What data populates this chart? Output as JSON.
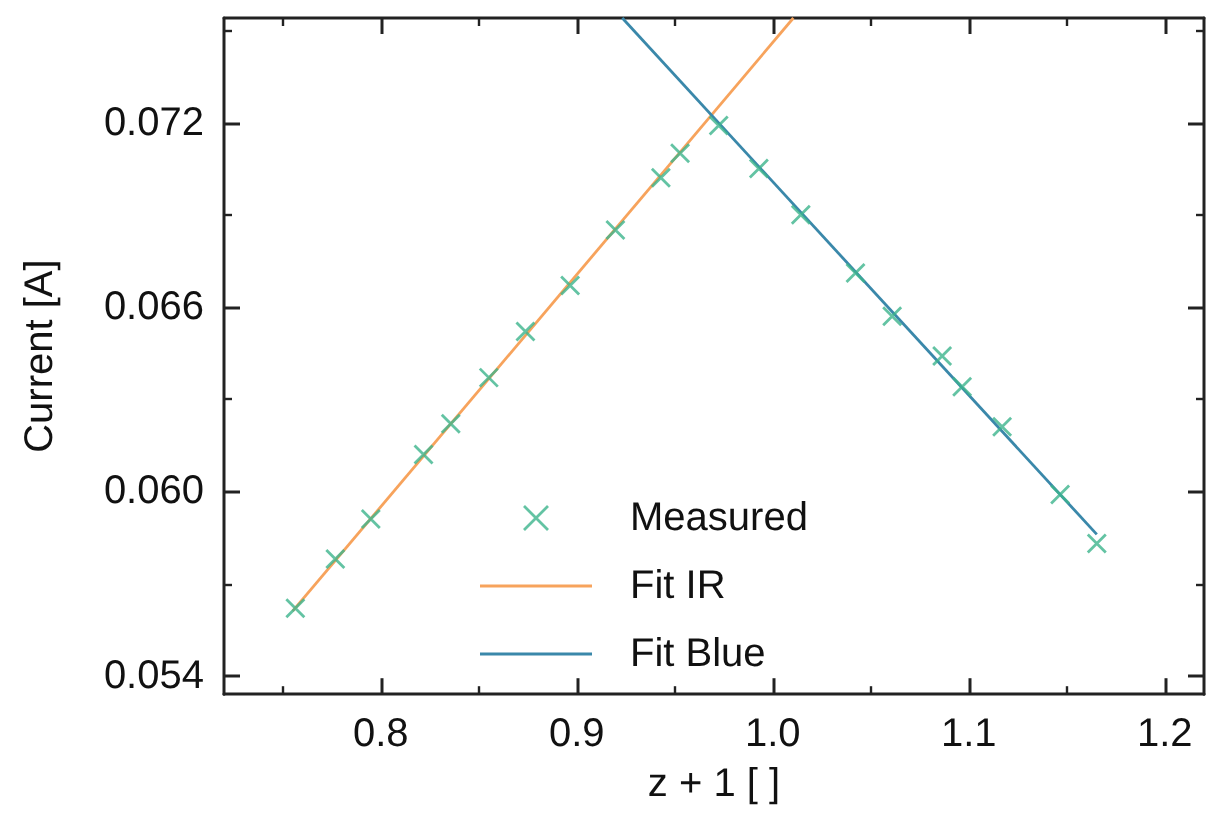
{
  "chart_data": {
    "type": "scatter",
    "xlabel": "z + 1 [ ]",
    "ylabel": "Current [A]",
    "xlim": [
      0.72,
      1.22
    ],
    "ylim": [
      0.0534,
      0.0754
    ],
    "xticks": [
      {
        "value": 0.75,
        "label": null
      },
      0.8,
      {
        "value": 0.85,
        "label": null
      },
      0.9,
      {
        "value": 0.95,
        "label": null
      },
      {
        "value": 1.0,
        "label": "1.0"
      },
      {
        "value": 1.05,
        "label": null
      },
      1.1,
      {
        "value": 1.15,
        "label": null
      },
      1.2
    ],
    "yticks": [
      0.054,
      {
        "value": 0.057,
        "label": null
      },
      {
        "value": 0.06,
        "label": "0.060"
      },
      {
        "value": 0.063,
        "label": null
      },
      0.066,
      {
        "value": 0.069,
        "label": null
      },
      0.072,
      {
        "value": 0.075,
        "label": null
      }
    ],
    "grid": false,
    "legend": "bottom",
    "series": [
      {
        "name": "Measured",
        "marker": "cross",
        "color": "#3cb48c",
        "x": [
          0.7564,
          0.7768,
          0.7949,
          0.8218,
          0.8357,
          0.8551,
          0.8738,
          0.8966,
          0.9197,
          0.9429,
          0.9527,
          0.9724,
          0.9929,
          1.0143,
          1.0422,
          1.0609,
          1.0864,
          1.0966,
          1.117,
          1.1466,
          1.1653
        ],
        "values": [
          0.0562,
          0.0578,
          0.0591,
          0.0612,
          0.0622,
          0.0637,
          0.0652,
          0.0667,
          0.0685,
          0.0702,
          0.071,
          0.0719,
          0.0705,
          0.069,
          0.0671,
          0.0657,
          0.0644,
          0.0634,
          0.0621,
          0.0599,
          0.0583
        ]
      },
      {
        "name": "Fit IR",
        "type": "line",
        "marker": "none",
        "line_style": "solid",
        "color": "#f7a35c",
        "x": [
          0.755,
          1.0105
        ],
        "values": [
          0.0561,
          0.0754
        ]
      },
      {
        "name": "Fit Blue",
        "type": "line",
        "marker": "none",
        "line_style": "solid",
        "color": "#3a88aa",
        "x": [
          0.9232,
          1.1653
        ],
        "values": [
          0.0754,
          0.0586
        ]
      }
    ]
  }
}
